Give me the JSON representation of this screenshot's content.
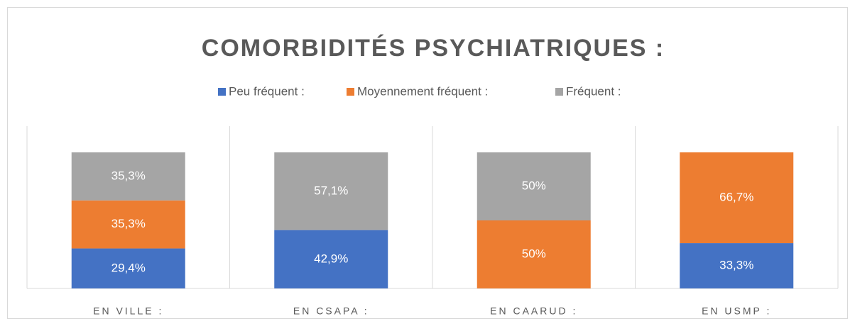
{
  "chart_data": {
    "type": "stacked_bar",
    "title": "COMORBIDITÉS PSYCHIATRIQUES :",
    "categories": [
      "EN VILLE :",
      "EN CSAPA :",
      "EN CAARUD :",
      "EN USMP :"
    ],
    "series": [
      {
        "name": "Peu fréquent :",
        "color": "#4472c4",
        "values": [
          29.4,
          42.9,
          0,
          33.3
        ],
        "value_labels": [
          "29,4%",
          "42,9%",
          null,
          "33,3%"
        ]
      },
      {
        "name": "Moyennement fréquent :",
        "color": "#ed7d31",
        "values": [
          35.3,
          0,
          50,
          66.7
        ],
        "value_labels": [
          "35,3%",
          null,
          "50%",
          "66,7%"
        ]
      },
      {
        "name": "Fréquent :",
        "color": "#a5a5a5",
        "values": [
          35.3,
          57.1,
          50,
          0
        ],
        "value_labels": [
          "35,3%",
          "57,1%",
          "50%",
          null
        ]
      }
    ],
    "legend": "top"
  }
}
